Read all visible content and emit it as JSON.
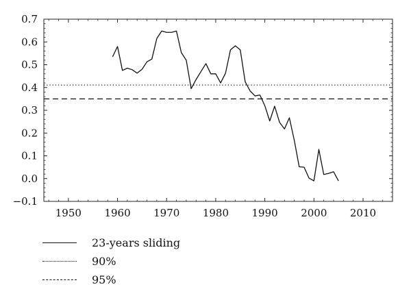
{
  "chart_data": {
    "type": "line",
    "title": "",
    "xlabel": "",
    "ylabel": "",
    "xlim": [
      1945,
      2016
    ],
    "ylim": [
      -0.1,
      0.7
    ],
    "x_ticks": [
      1950,
      1960,
      1970,
      1980,
      1990,
      2000,
      2010
    ],
    "y_ticks": [
      -0.1,
      0.0,
      0.1,
      0.2,
      0.3,
      0.4,
      0.5,
      0.6,
      0.7
    ],
    "y_tick_labels": [
      "−0.1",
      "0.0",
      "0.1",
      "0.2",
      "0.3",
      "0.4",
      "0.5",
      "0.6",
      "0.7"
    ],
    "grid": false,
    "legend_position": "below",
    "series": [
      {
        "name": "23-years sliding",
        "style": "solid",
        "x": [
          1959,
          1960,
          1961,
          1962,
          1963,
          1964,
          1965,
          1966,
          1967,
          1968,
          1969,
          1970,
          1971,
          1972,
          1973,
          1974,
          1975,
          1976,
          1977,
          1978,
          1979,
          1980,
          1981,
          1982,
          1983,
          1984,
          1985,
          1986,
          1987,
          1988,
          1989,
          1990,
          1991,
          1992,
          1993,
          1994,
          1995,
          1996,
          1997,
          1998,
          1999,
          2000,
          2001,
          2002,
          2003,
          2004,
          2005
        ],
        "y": [
          0.535,
          0.58,
          0.475,
          0.485,
          0.478,
          0.463,
          0.48,
          0.513,
          0.525,
          0.615,
          0.648,
          0.642,
          0.642,
          0.648,
          0.553,
          0.52,
          0.395,
          0.435,
          0.47,
          0.505,
          0.46,
          0.46,
          0.42,
          0.463,
          0.565,
          0.583,
          0.565,
          0.425,
          0.385,
          0.363,
          0.367,
          0.32,
          0.253,
          0.318,
          0.247,
          0.218,
          0.267,
          0.168,
          0.052,
          0.05,
          0.002,
          -0.01,
          0.128,
          0.018,
          0.023,
          0.03,
          -0.01
        ]
      },
      {
        "name": "90%",
        "style": "dotted",
        "x": [
          1945,
          2016
        ],
        "y": [
          0.411,
          0.411
        ]
      },
      {
        "name": "95%",
        "style": "dashed",
        "x": [
          1945,
          2016
        ],
        "y": [
          0.35,
          0.35
        ]
      }
    ],
    "colors": {
      "line": "#111111",
      "axis": "#222222"
    }
  },
  "legend": {
    "items": [
      {
        "label": "23-years sliding",
        "style": "solid"
      },
      {
        "label": "90%",
        "style": "dotted"
      },
      {
        "label": "95%",
        "style": "dashed"
      }
    ]
  }
}
